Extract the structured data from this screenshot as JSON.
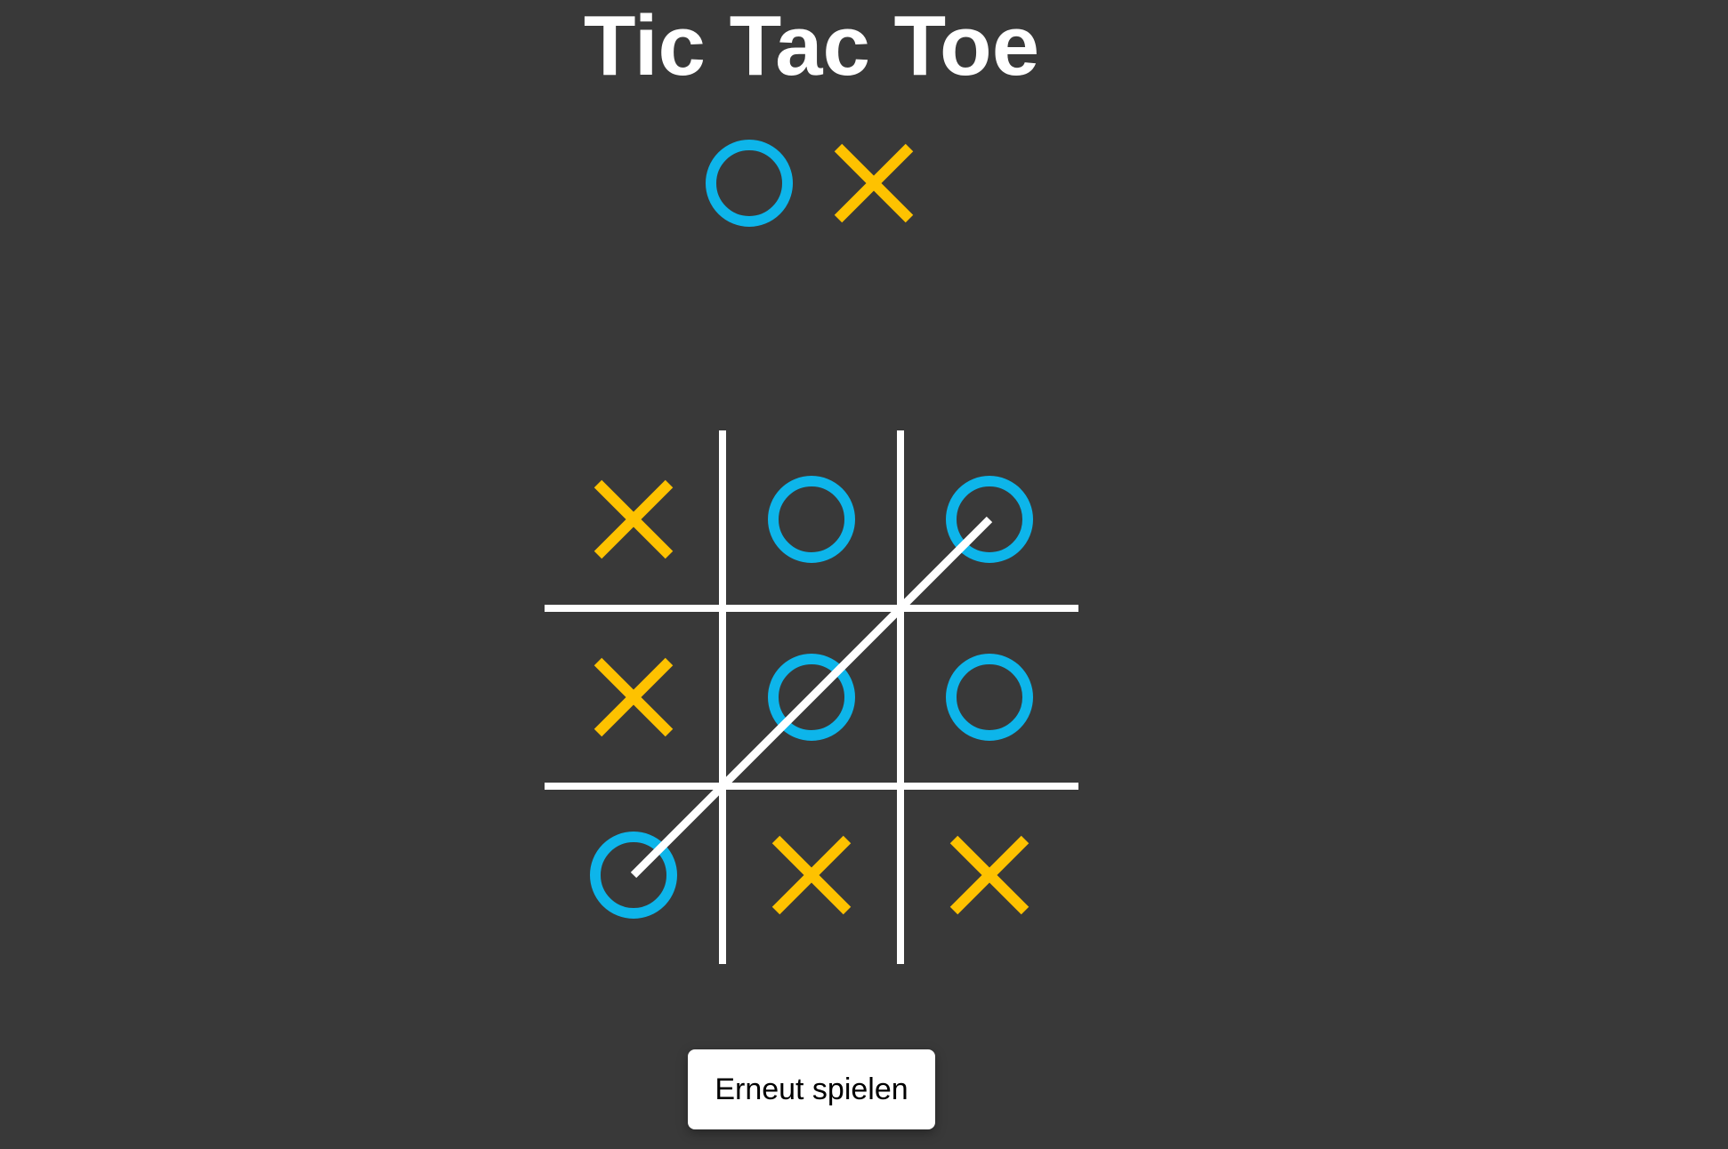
{
  "title": "Tic Tac Toe",
  "colors": {
    "background": "#393939",
    "o": "#0db5ea",
    "x": "#fec200",
    "grid": "#ffffff",
    "winLine": "#ffffff",
    "button_bg": "#ffffff",
    "button_text": "#000000"
  },
  "icons": {
    "o": "o-mark-icon",
    "x": "x-mark-icon"
  },
  "players": [
    "O",
    "X"
  ],
  "board": [
    [
      "X",
      "O",
      "O"
    ],
    [
      "X",
      "O",
      "O"
    ],
    [
      "O",
      "X",
      "X"
    ]
  ],
  "winner": {
    "mark": "O",
    "line": [
      [
        2,
        0
      ],
      [
        1,
        1
      ],
      [
        0,
        2
      ]
    ]
  },
  "replay_button": {
    "label": "Erneut spielen"
  }
}
